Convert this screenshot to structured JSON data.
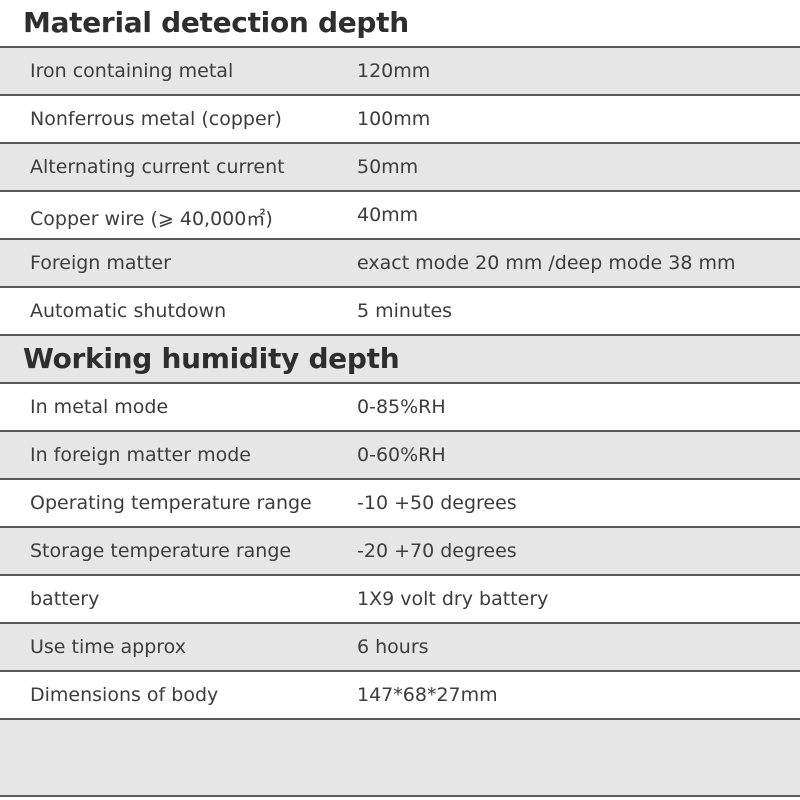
{
  "sections": [
    {
      "title": "Material detection depth",
      "rows": [
        {
          "label": "Iron containing metal",
          "value": "120mm"
        },
        {
          "label": "Nonferrous metal (copper)",
          "value": "100mm"
        },
        {
          "label": "Alternating current current",
          "value": "50mm"
        },
        {
          "label": "Copper wire (⩾ 40,000㎡)",
          "value": "40mm"
        },
        {
          "label": "Foreign matter",
          "value": "exact mode 20 mm /deep mode 38 mm"
        },
        {
          "label": "Automatic shutdown",
          "value": "5 minutes"
        }
      ]
    },
    {
      "title": "Working humidity depth",
      "rows": [
        {
          "label": "In metal mode",
          "value": "0-85%RH"
        },
        {
          "label": "In foreign matter mode",
          "value": "0-60%RH"
        },
        {
          "label": "Operating temperature range",
          "value": "-10 +50 degrees"
        },
        {
          "label": "Storage temperature range",
          "value": "-20 +70 degrees"
        },
        {
          "label": "battery",
          "value": "1X9 volt dry battery"
        },
        {
          "label": "Use time approx",
          "value": "6 hours"
        },
        {
          "label": "Dimensions of body",
          "value": "147*68*27mm"
        }
      ]
    }
  ],
  "colors": {
    "row_gray": "#e6e6e6",
    "row_white": "#ffffff",
    "border": "#5a5a5a",
    "text": "#3c3c3c"
  }
}
